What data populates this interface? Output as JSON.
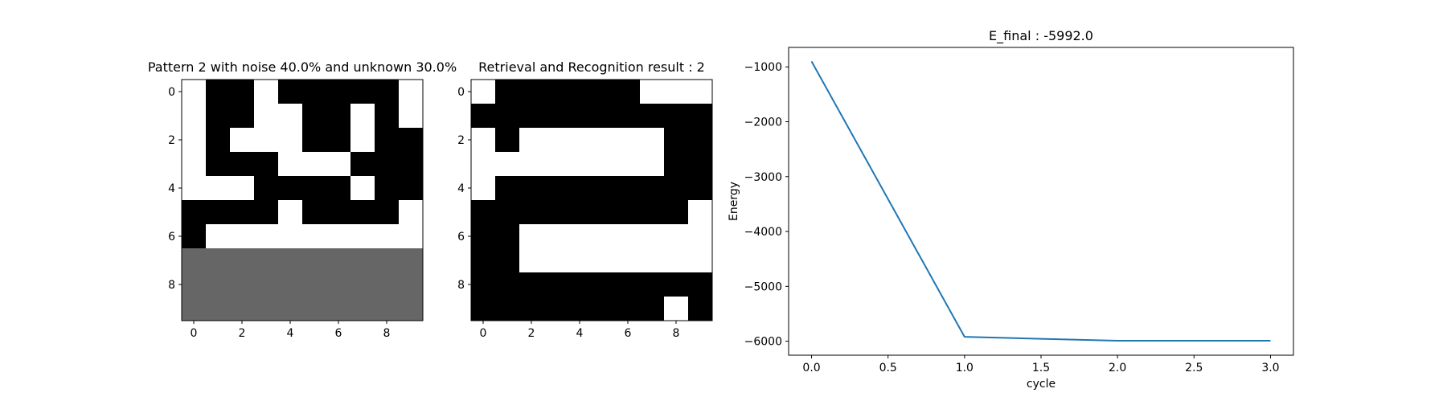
{
  "chart_data": [
    {
      "type": "heatmap",
      "title": "Pattern 2 with noise 40.0% and unknown 30.0%",
      "xticks": [
        "0",
        "2",
        "4",
        "6",
        "8"
      ],
      "yticks": [
        "0",
        "2",
        "4",
        "6",
        "8"
      ],
      "legend": {
        "0": "black",
        "1": "white",
        "u": "unknown (gray)"
      },
      "colors": {
        "0": "#000000",
        "1": "#ffffff",
        "u": "#666666"
      },
      "rows": [
        "1001000001",
        "1001100101",
        "1011100100",
        "1000111000",
        "1110000100",
        "0000100001",
        "0111111111",
        "uuuuuuuuuu",
        "uuuuuuuuuu",
        "uuuuuuuuuu"
      ]
    },
    {
      "type": "heatmap",
      "title": "Retrieval and Recognition result : 2",
      "xticks": [
        "0",
        "2",
        "4",
        "6",
        "8"
      ],
      "yticks": [
        "0",
        "2",
        "4",
        "6",
        "8"
      ],
      "legend": {
        "0": "black",
        "1": "white"
      },
      "colors": {
        "0": "#000000",
        "1": "#ffffff"
      },
      "rows": [
        "1000000111",
        "0000000000",
        "1011111100",
        "1111111100",
        "1000000000",
        "0000000001",
        "0011111111",
        "0011111111",
        "0000000000",
        "0000000010"
      ]
    },
    {
      "type": "line",
      "title": "E_final : -5992.0",
      "xlabel": "cycle",
      "ylabel": "Energy",
      "x": [
        0,
        1,
        2,
        3
      ],
      "series": [
        {
          "values": [
            -900,
            -5920,
            -5992,
            -5992
          ],
          "color": "#1f77b4"
        }
      ],
      "xlim": [
        -0.15,
        3.15
      ],
      "ylim": [
        -6255,
        -645
      ],
      "xticks": [
        "0.0",
        "0.5",
        "1.0",
        "1.5",
        "2.0",
        "2.5",
        "3.0"
      ],
      "yticks": [
        "−1000",
        "−2000",
        "−3000",
        "−4000",
        "−5000",
        "−6000"
      ],
      "grid": false
    }
  ]
}
